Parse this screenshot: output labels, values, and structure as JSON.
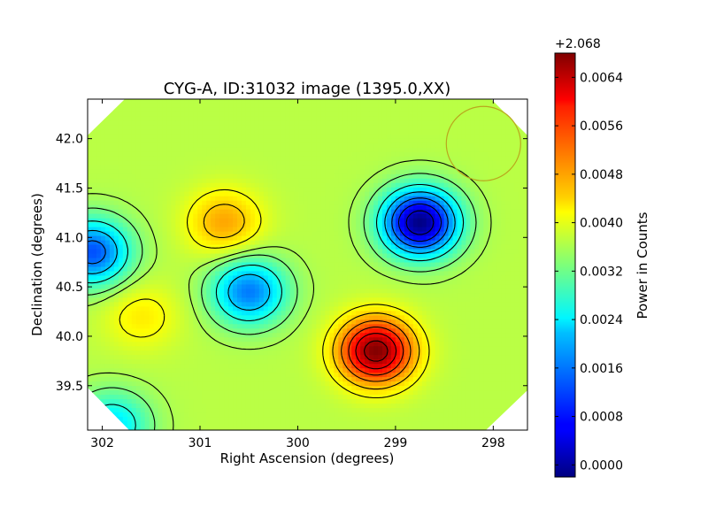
{
  "chart_data": {
    "type": "heatmap",
    "title": "CYG-A, ID:31032 image (1395.0,XX)",
    "xlabel": "Right Ascension (degrees)",
    "ylabel": "Declination (degrees)",
    "xlim": [
      302.15,
      297.65
    ],
    "ylim": [
      39.05,
      42.4
    ],
    "x_ticks": [
      302,
      301,
      300,
      299,
      298
    ],
    "x_tick_labels": [
      "302",
      "301",
      "300",
      "299",
      "298"
    ],
    "y_ticks": [
      39.5,
      40.0,
      40.5,
      41.0,
      41.5,
      42.0
    ],
    "y_tick_labels": [
      "39.5",
      "40.0",
      "40.5",
      "41.0",
      "41.5",
      "42.0"
    ],
    "colorbar": {
      "label": "Power in Counts",
      "offset_label": "+2.068",
      "range": [
        -0.0002,
        0.0068
      ],
      "ticks": [
        0.0,
        0.0008,
        0.0016,
        0.0024,
        0.0032,
        0.004,
        0.0048,
        0.0056,
        0.0064
      ],
      "tick_labels": [
        "0.0000",
        "0.0008",
        "0.0016",
        "0.0024",
        "0.0032",
        "0.0040",
        "0.0048",
        "0.0056",
        "0.0064"
      ]
    },
    "colormap": "jet",
    "base_value": 0.0037,
    "features": [
      {
        "kind": "minimum",
        "ra": 298.75,
        "dec": 41.15,
        "value": -0.0002
      },
      {
        "kind": "minimum",
        "ra": 302.1,
        "dec": 40.85,
        "value": 0.0012
      },
      {
        "kind": "minimum",
        "ra": 300.5,
        "dec": 40.45,
        "value": 0.0015
      },
      {
        "kind": "minimum",
        "ra": 301.9,
        "dec": 39.1,
        "value": 0.0022
      },
      {
        "kind": "maximum",
        "ra": 299.2,
        "dec": 39.85,
        "value": 0.0068
      },
      {
        "kind": "maximum",
        "ra": 300.75,
        "dec": 41.15,
        "value": 0.0048
      },
      {
        "kind": "maximum",
        "ra": 301.6,
        "dec": 40.2,
        "value": 0.0043
      }
    ],
    "contour_levels": [
      0.0003,
      0.0009,
      0.0015,
      0.0021,
      0.0027,
      0.0033,
      0.0036,
      0.0041,
      0.0045,
      0.005,
      0.0055,
      0.006,
      0.0065
    ],
    "beam_marker": {
      "ra": 298.1,
      "dec": 41.95,
      "color": "#b9a71e"
    },
    "grid": false
  }
}
